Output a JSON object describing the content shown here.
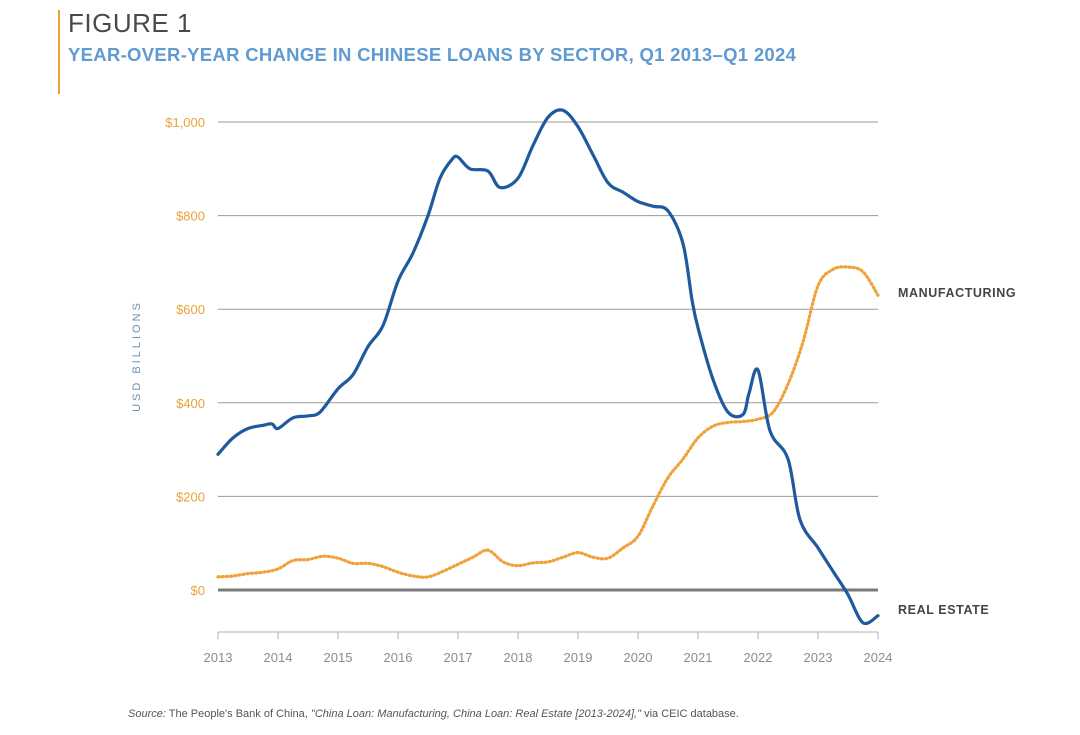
{
  "figure": {
    "label": "FIGURE 1",
    "title": "YEAR-OVER-YEAR CHANGE IN CHINESE LOANS BY SECTOR, Q1 2013–Q1 2024"
  },
  "source": {
    "prefix": "Source:",
    "text": " The People's Bank of China, ",
    "italic_title": "\"China Loan: Manufacturing, China Loan: Real Estate [2013-2024],\"",
    "suffix": " via CEIC database."
  },
  "colors": {
    "real_estate": "#1f5a9e",
    "manufacturing": "#f0a13a",
    "tick_text": "#e9a23b",
    "x_tick_text": "#8c8c8c",
    "ylabel": "#6f8fb0",
    "grid": "#9a9a9a",
    "zero_line": "#7a7a7a"
  },
  "chart_data": {
    "type": "line",
    "title": "YEAR-OVER-YEAR CHANGE IN CHINESE LOANS BY SECTOR, Q1 2013–Q1 2024",
    "xlabel": "",
    "ylabel": "USD BILLIONS",
    "xlim": [
      2013,
      2024
    ],
    "ylim": [
      -75,
      1030
    ],
    "x_ticks": [
      2013,
      2014,
      2015,
      2016,
      2017,
      2018,
      2019,
      2020,
      2021,
      2022,
      2023,
      2024
    ],
    "x_tick_labels": [
      "2013",
      "2014",
      "2015",
      "2016",
      "2017",
      "2018",
      "2019",
      "2020",
      "2021",
      "2022",
      "2023",
      "2024"
    ],
    "y_ticks": [
      0,
      200,
      400,
      600,
      800,
      1000
    ],
    "y_tick_labels": [
      "$0",
      "$200",
      "$400",
      "$600",
      "$800",
      "$1,000"
    ],
    "grid": true,
    "legend": "direct labels at right end of lines",
    "series": [
      {
        "name": "REAL ESTATE",
        "style": "solid",
        "points": [
          [
            2013.0,
            290
          ],
          [
            2013.25,
            325
          ],
          [
            2013.5,
            345
          ],
          [
            2013.75,
            352
          ],
          [
            2013.9,
            355
          ],
          [
            2014.0,
            345
          ],
          [
            2014.25,
            368
          ],
          [
            2014.5,
            372
          ],
          [
            2014.7,
            380
          ],
          [
            2015.0,
            430
          ],
          [
            2015.25,
            460
          ],
          [
            2015.5,
            520
          ],
          [
            2015.75,
            565
          ],
          [
            2016.0,
            660
          ],
          [
            2016.25,
            720
          ],
          [
            2016.5,
            800
          ],
          [
            2016.7,
            880
          ],
          [
            2016.9,
            920
          ],
          [
            2017.0,
            925
          ],
          [
            2017.2,
            900
          ],
          [
            2017.5,
            895
          ],
          [
            2017.7,
            860
          ],
          [
            2018.0,
            880
          ],
          [
            2018.25,
            950
          ],
          [
            2018.5,
            1010
          ],
          [
            2018.75,
            1025
          ],
          [
            2019.0,
            990
          ],
          [
            2019.25,
            930
          ],
          [
            2019.5,
            870
          ],
          [
            2019.75,
            850
          ],
          [
            2020.0,
            830
          ],
          [
            2020.25,
            820
          ],
          [
            2020.5,
            810
          ],
          [
            2020.75,
            740
          ],
          [
            2020.9,
            620
          ],
          [
            2021.0,
            560
          ],
          [
            2021.25,
            450
          ],
          [
            2021.5,
            380
          ],
          [
            2021.75,
            375
          ],
          [
            2021.85,
            420
          ],
          [
            2022.0,
            470
          ],
          [
            2022.2,
            340
          ],
          [
            2022.5,
            280
          ],
          [
            2022.7,
            150
          ],
          [
            2023.0,
            90
          ],
          [
            2023.25,
            40
          ],
          [
            2023.5,
            -10
          ],
          [
            2023.75,
            -70
          ],
          [
            2024.0,
            -55
          ]
        ]
      },
      {
        "name": "MANUFACTURING",
        "style": "dotted",
        "points": [
          [
            2013.0,
            28
          ],
          [
            2013.25,
            30
          ],
          [
            2013.5,
            35
          ],
          [
            2013.75,
            38
          ],
          [
            2014.0,
            45
          ],
          [
            2014.25,
            63
          ],
          [
            2014.5,
            65
          ],
          [
            2014.75,
            72
          ],
          [
            2015.0,
            68
          ],
          [
            2015.25,
            57
          ],
          [
            2015.5,
            57
          ],
          [
            2015.75,
            50
          ],
          [
            2016.0,
            38
          ],
          [
            2016.25,
            30
          ],
          [
            2016.5,
            28
          ],
          [
            2016.75,
            40
          ],
          [
            2017.0,
            55
          ],
          [
            2017.25,
            70
          ],
          [
            2017.5,
            85
          ],
          [
            2017.75,
            60
          ],
          [
            2018.0,
            52
          ],
          [
            2018.25,
            58
          ],
          [
            2018.5,
            60
          ],
          [
            2018.75,
            70
          ],
          [
            2019.0,
            80
          ],
          [
            2019.25,
            70
          ],
          [
            2019.5,
            68
          ],
          [
            2019.75,
            90
          ],
          [
            2020.0,
            115
          ],
          [
            2020.25,
            180
          ],
          [
            2020.5,
            240
          ],
          [
            2020.75,
            280
          ],
          [
            2021.0,
            325
          ],
          [
            2021.25,
            350
          ],
          [
            2021.5,
            358
          ],
          [
            2021.75,
            360
          ],
          [
            2022.0,
            365
          ],
          [
            2022.25,
            380
          ],
          [
            2022.5,
            440
          ],
          [
            2022.75,
            530
          ],
          [
            2023.0,
            650
          ],
          [
            2023.25,
            685
          ],
          [
            2023.5,
            690
          ],
          [
            2023.75,
            680
          ],
          [
            2024.0,
            630
          ]
        ]
      }
    ]
  }
}
